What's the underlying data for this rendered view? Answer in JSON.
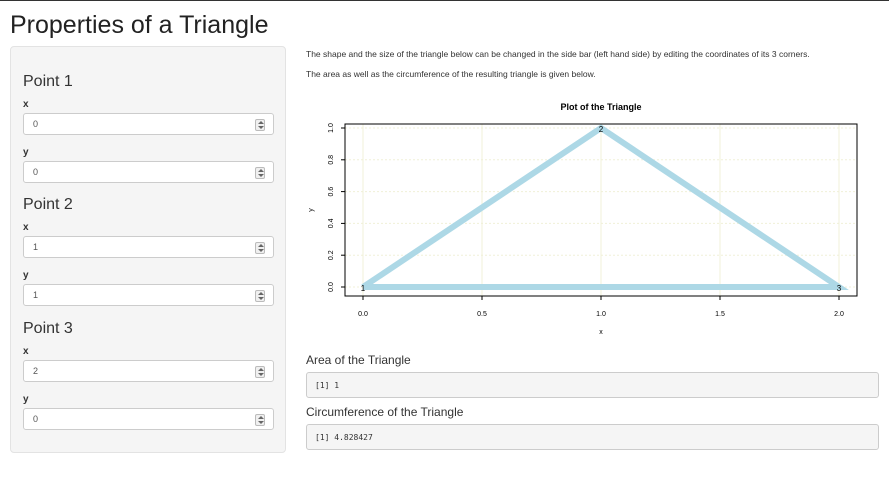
{
  "page": {
    "title": "Properties of a Triangle",
    "description_line1": "The shape and the size of the triangle below can be changed in the side bar (left hand side) by editing the coordinates of its 3 corners.",
    "description_line2": "The area as well as the circumference of the resulting triangle is given below."
  },
  "sidebar": {
    "point1": {
      "heading": "Point 1",
      "x_label": "x",
      "x_value": "0",
      "y_label": "y",
      "y_value": "0"
    },
    "point2": {
      "heading": "Point 2",
      "x_label": "x",
      "x_value": "1",
      "y_label": "y",
      "y_value": "1"
    },
    "point3": {
      "heading": "Point 3",
      "x_label": "x",
      "x_value": "2",
      "y_label": "y",
      "y_value": "0"
    }
  },
  "outputs": {
    "area_title": "Area of the Triangle",
    "area_value": "[1] 1",
    "circ_title": "Circumference of the Triangle",
    "circ_value": "[1] 4.828427"
  },
  "colors": {
    "triangle": "#add8e6",
    "grid": "#f0f0d8"
  },
  "chart_data": {
    "type": "line",
    "title": "Plot of the Triangle",
    "xlabel": "x",
    "ylabel": "y",
    "xlim": [
      0,
      2
    ],
    "ylim": [
      0,
      1
    ],
    "x_ticks": [
      "0.0",
      "0.5",
      "1.0",
      "1.5",
      "2.0"
    ],
    "y_ticks": [
      "0.0",
      "0.2",
      "0.4",
      "0.6",
      "0.8",
      "1.0"
    ],
    "grid": true,
    "series": [
      {
        "x": [
          0,
          1,
          2,
          0
        ],
        "y": [
          0,
          1,
          0,
          0
        ]
      }
    ],
    "point_labels": [
      {
        "label": "1",
        "x": 0,
        "y": 0
      },
      {
        "label": "2",
        "x": 1,
        "y": 1
      },
      {
        "label": "3",
        "x": 2,
        "y": 0
      }
    ]
  }
}
